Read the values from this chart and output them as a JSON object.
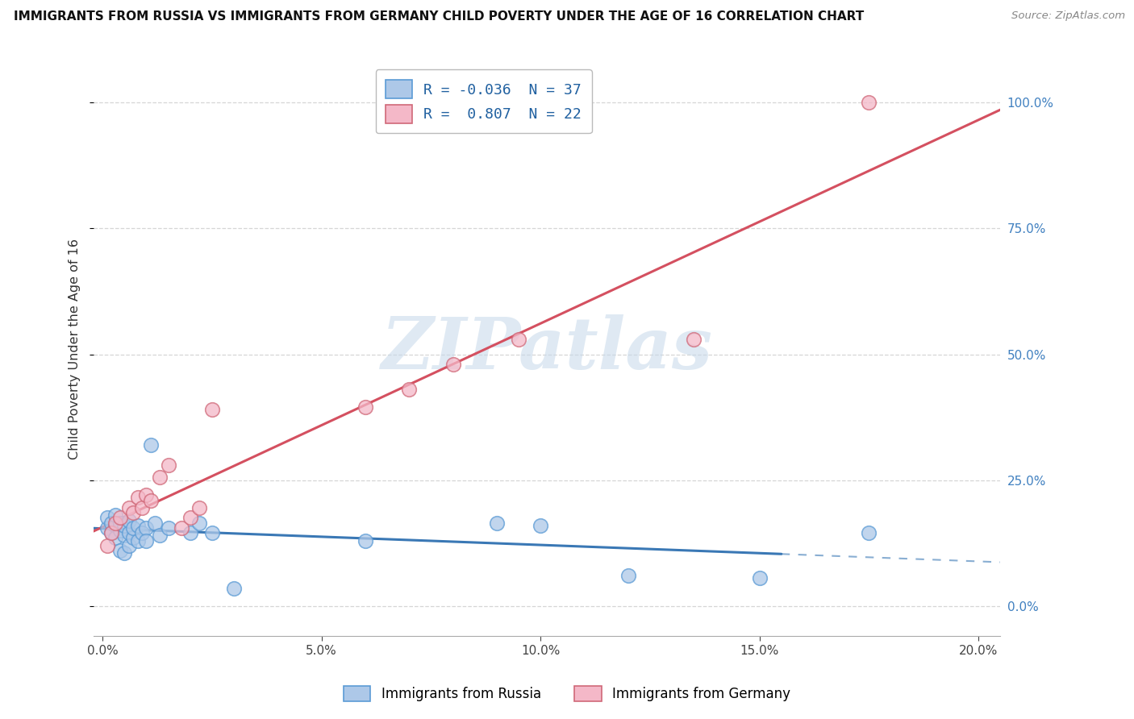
{
  "title": "IMMIGRANTS FROM RUSSIA VS IMMIGRANTS FROM GERMANY CHILD POVERTY UNDER THE AGE OF 16 CORRELATION CHART",
  "source": "Source: ZipAtlas.com",
  "ylabel": "Child Poverty Under the Age of 16",
  "xlabel_russia": "Immigrants from Russia",
  "xlabel_germany": "Immigrants from Germany",
  "R_russia": -0.036,
  "N_russia": 37,
  "R_germany": 0.807,
  "N_germany": 22,
  "color_russia_fill": "#adc8e8",
  "color_russia_edge": "#5b9bd5",
  "color_germany_fill": "#f4b8c8",
  "color_germany_edge": "#d06878",
  "color_russia_line": "#3a78b5",
  "color_germany_line": "#d45060",
  "color_ytick": "#4080c0",
  "watermark": "ZIPatlas",
  "watermark_color": "#c5d8ea",
  "russia_x": [
    0.001,
    0.001,
    0.002,
    0.002,
    0.003,
    0.003,
    0.003,
    0.004,
    0.004,
    0.004,
    0.005,
    0.005,
    0.005,
    0.006,
    0.006,
    0.006,
    0.007,
    0.007,
    0.008,
    0.008,
    0.009,
    0.01,
    0.01,
    0.011,
    0.012,
    0.013,
    0.015,
    0.02,
    0.022,
    0.025,
    0.03,
    0.06,
    0.09,
    0.1,
    0.12,
    0.15,
    0.175
  ],
  "russia_y": [
    0.155,
    0.175,
    0.145,
    0.165,
    0.16,
    0.135,
    0.18,
    0.15,
    0.165,
    0.11,
    0.14,
    0.16,
    0.105,
    0.145,
    0.12,
    0.17,
    0.135,
    0.155,
    0.16,
    0.13,
    0.145,
    0.155,
    0.13,
    0.32,
    0.165,
    0.14,
    0.155,
    0.145,
    0.165,
    0.145,
    0.035,
    0.13,
    0.165,
    0.16,
    0.06,
    0.055,
    0.145
  ],
  "germany_x": [
    0.001,
    0.002,
    0.003,
    0.004,
    0.006,
    0.007,
    0.008,
    0.009,
    0.01,
    0.011,
    0.013,
    0.015,
    0.018,
    0.02,
    0.022,
    0.025,
    0.06,
    0.07,
    0.08,
    0.095,
    0.135,
    0.175
  ],
  "germany_y": [
    0.12,
    0.145,
    0.165,
    0.175,
    0.195,
    0.185,
    0.215,
    0.195,
    0.22,
    0.21,
    0.255,
    0.28,
    0.155,
    0.175,
    0.195,
    0.39,
    0.395,
    0.43,
    0.48,
    0.53,
    0.53,
    1.0
  ],
  "xlim_min": -0.002,
  "xlim_max": 0.205,
  "ylim_min": -0.06,
  "ylim_max": 1.08,
  "xticks": [
    0.0,
    0.05,
    0.1,
    0.15,
    0.2
  ],
  "xtick_labels": [
    "0.0%",
    "5.0%",
    "10.0%",
    "15.0%",
    "20.0%"
  ],
  "yticks": [
    0.0,
    0.25,
    0.5,
    0.75,
    1.0
  ],
  "ytick_labels": [
    "0.0%",
    "25.0%",
    "50.0%",
    "75.0%",
    "100.0%"
  ],
  "russia_line_solid_end": 0.155,
  "russia_line_dashed_start": 0.155
}
